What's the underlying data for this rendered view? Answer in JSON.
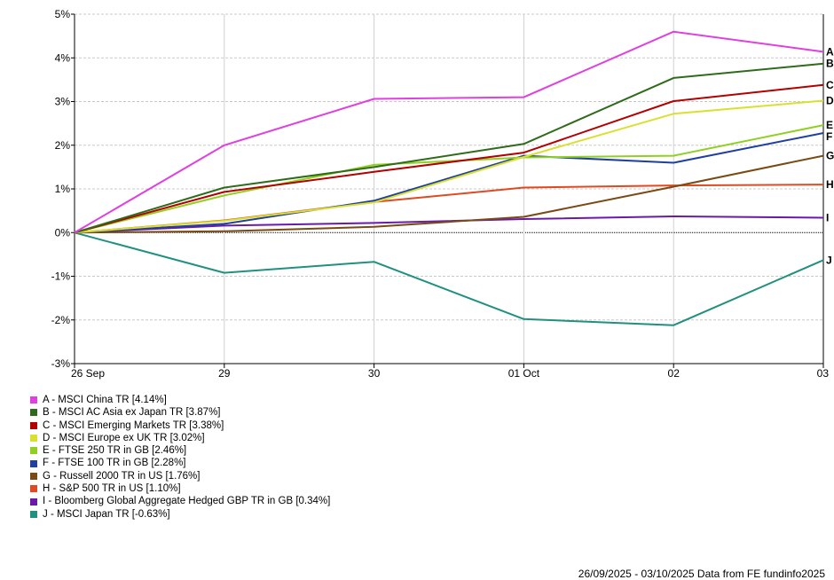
{
  "chart_data": {
    "type": "line",
    "title": "",
    "xlabel": "",
    "ylabel": "",
    "categories": [
      "26 Sep",
      "29",
      "30",
      "01 Oct",
      "02",
      "03"
    ],
    "ylim": [
      -3,
      5
    ],
    "yticks": [
      -3,
      -2,
      -1,
      0,
      1,
      2,
      3,
      4,
      5
    ],
    "ytick_labels": [
      "-3%",
      "-2%",
      "-1%",
      "0%",
      "1%",
      "2%",
      "3%",
      "4%",
      "5%"
    ],
    "grid": true,
    "legend_position": "bottom-left",
    "series": [
      {
        "letter": "A",
        "name": "A - MSCI China TR [4.14%]",
        "color": "#e040e0",
        "values": [
          0,
          2.0,
          3.06,
          3.1,
          4.6,
          4.14
        ]
      },
      {
        "letter": "B",
        "name": "B - MSCI AC Asia ex Japan TR [3.87%]",
        "color": "#2e6b1a",
        "values": [
          0,
          1.03,
          1.5,
          2.03,
          3.54,
          3.87
        ]
      },
      {
        "letter": "C",
        "name": "C - MSCI Emerging Markets TR [3.38%]",
        "color": "#b30000",
        "values": [
          0,
          0.93,
          1.39,
          1.83,
          3.01,
          3.38
        ]
      },
      {
        "letter": "D",
        "name": "D - MSCI Europe ex UK TR [3.02%]",
        "color": "#d9e030",
        "values": [
          0,
          0.27,
          0.69,
          1.73,
          2.72,
          3.02
        ]
      },
      {
        "letter": "E",
        "name": "E - FTSE 250 TR in GB [2.46%]",
        "color": "#90d020",
        "values": [
          0,
          0.85,
          1.55,
          1.72,
          1.76,
          2.46
        ]
      },
      {
        "letter": "F",
        "name": "F - FTSE 100 TR in GB [2.28%]",
        "color": "#2040a0",
        "values": [
          0,
          0.2,
          0.73,
          1.76,
          1.6,
          2.28
        ]
      },
      {
        "letter": "G",
        "name": "G - Russell 2000 TR in US [1.76%]",
        "color": "#7a4a14",
        "values": [
          0,
          0.03,
          0.13,
          0.36,
          1.05,
          1.76
        ]
      },
      {
        "letter": "H",
        "name": "H - S&P 500 TR in US [1.10%]",
        "color": "#e04a20",
        "values": [
          0,
          0.28,
          0.7,
          1.03,
          1.08,
          1.1
        ]
      },
      {
        "letter": "I",
        "name": "I - Bloomberg Global Aggregate Hedged GBP TR in GB [0.34%]",
        "color": "#6a1aa8",
        "values": [
          0,
          0.16,
          0.22,
          0.31,
          0.37,
          0.34
        ]
      },
      {
        "letter": "J",
        "name": "J - MSCI Japan TR [-0.63%]",
        "color": "#209080",
        "values": [
          0,
          -0.92,
          -0.67,
          -1.98,
          -2.12,
          -0.63
        ]
      }
    ]
  },
  "footer": {
    "text": "26/09/2025 - 03/10/2025 Data from FE fundinfo2025"
  }
}
